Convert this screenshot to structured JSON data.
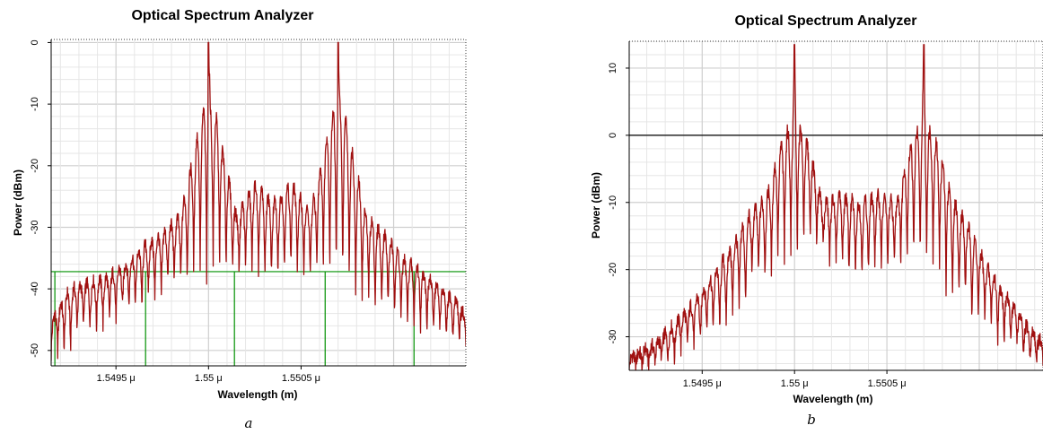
{
  "chart_data": [
    {
      "type": "line",
      "title": "Optical Spectrum Analyzer",
      "xlabel": "Wavelength (m)",
      "ylabel": "Power (dBm)",
      "caption": "a",
      "xlim": [
        1.54915,
        1.55139
      ],
      "ylim": [
        -52.5,
        0.5
      ],
      "xticks": [
        1.5495,
        1.55,
        1.5505
      ],
      "xtick_labels": [
        "1.5495 μ",
        "1.55 μ",
        "1.5505 μ"
      ],
      "yticks": [
        0,
        -10,
        -20,
        -30,
        -40,
        -50
      ],
      "ytick_labels": [
        "0",
        "-10",
        "-20",
        "-30",
        "-40",
        "-50"
      ],
      "grid": true,
      "series": [
        {
          "color": "#a01010",
          "x": [
            1.54915,
            1.54925,
            1.54935,
            1.54945,
            1.54955,
            1.54965,
            1.54975,
            1.54985,
            1.54992,
            1.54996,
            1.54999,
            1.55,
            1.55001,
            1.55004,
            1.55008,
            1.55015,
            1.55025,
            1.55035,
            1.55045,
            1.55055,
            1.55062,
            1.55066,
            1.55069,
            1.5507,
            1.55071,
            1.55074,
            1.55078,
            1.55085,
            1.55095,
            1.55105,
            1.55115,
            1.55125,
            1.55135,
            1.55139
          ],
          "y": [
            -45,
            -40,
            -39,
            -38,
            -36,
            -33,
            -31,
            -28,
            -18,
            -12,
            -10,
            0,
            -10,
            -12,
            -18,
            -28,
            -23,
            -26,
            -23,
            -28,
            -18,
            -12,
            -10,
            0,
            -10,
            -12,
            -18,
            -28,
            -31,
            -35,
            -37,
            -40,
            -42,
            -45
          ],
          "lows": [
            -51,
            -47,
            -46,
            -44,
            -42,
            -40,
            -39,
            -38,
            -38,
            -39,
            -38,
            -38,
            -40,
            -42,
            -44,
            -46,
            -47,
            -49
          ]
        }
      ],
      "reference_line": {
        "type": "horizontal",
        "y": -37.2,
        "color": "#009000"
      },
      "markers": {
        "type": "vertical",
        "x": [
          1.54917,
          1.54966,
          1.55014,
          1.55063,
          1.55111
        ],
        "color": "#009000"
      }
    },
    {
      "type": "line",
      "title": "Optical Spectrum Analyzer",
      "xlabel": "Wavelength (m)",
      "ylabel": "Power (dBm)",
      "caption": "b",
      "xlim": [
        1.549105,
        1.551345
      ],
      "ylim": [
        -35,
        14
      ],
      "xticks": [
        1.5495,
        1.55,
        1.5505
      ],
      "xtick_labels": [
        "1.5495 μ",
        "1.55 μ",
        "1.5505 μ"
      ],
      "yticks": [
        10,
        0,
        -10,
        -20,
        -30
      ],
      "ytick_labels": [
        "10",
        "0",
        "-10",
        "-20",
        "-30"
      ],
      "grid": true,
      "series": [
        {
          "color": "#a01010",
          "x": [
            1.549105,
            1.54925,
            1.54935,
            1.54945,
            1.54955,
            1.54965,
            1.54975,
            1.54985,
            1.54992,
            1.54996,
            1.54999,
            1.55,
            1.55001,
            1.55004,
            1.55008,
            1.55015,
            1.55025,
            1.55035,
            1.55045,
            1.55055,
            1.55062,
            1.55066,
            1.55069,
            1.5507,
            1.55071,
            1.55074,
            1.55078,
            1.55085,
            1.55095,
            1.55105,
            1.55115,
            1.55125,
            1.551345
          ],
          "y": [
            -33,
            -31,
            -28,
            -25,
            -21,
            -17,
            -12,
            -9,
            -2,
            0.5,
            2,
            13.5,
            2,
            0.5,
            -2,
            -10,
            -9,
            -10,
            -9,
            -10,
            -2,
            0.5,
            2,
            13.5,
            2,
            0.5,
            -2,
            -9,
            -14,
            -20,
            -24,
            -28,
            -31
          ],
          "lows": [
            -35,
            -34,
            -32,
            -30,
            -27,
            -22,
            -19,
            -17,
            -20,
            -22,
            -20,
            -20,
            -20,
            -25,
            -28,
            -31,
            -34
          ]
        }
      ],
      "reference_line": {
        "type": "horizontal",
        "y": 0,
        "color": "#000000"
      }
    }
  ]
}
